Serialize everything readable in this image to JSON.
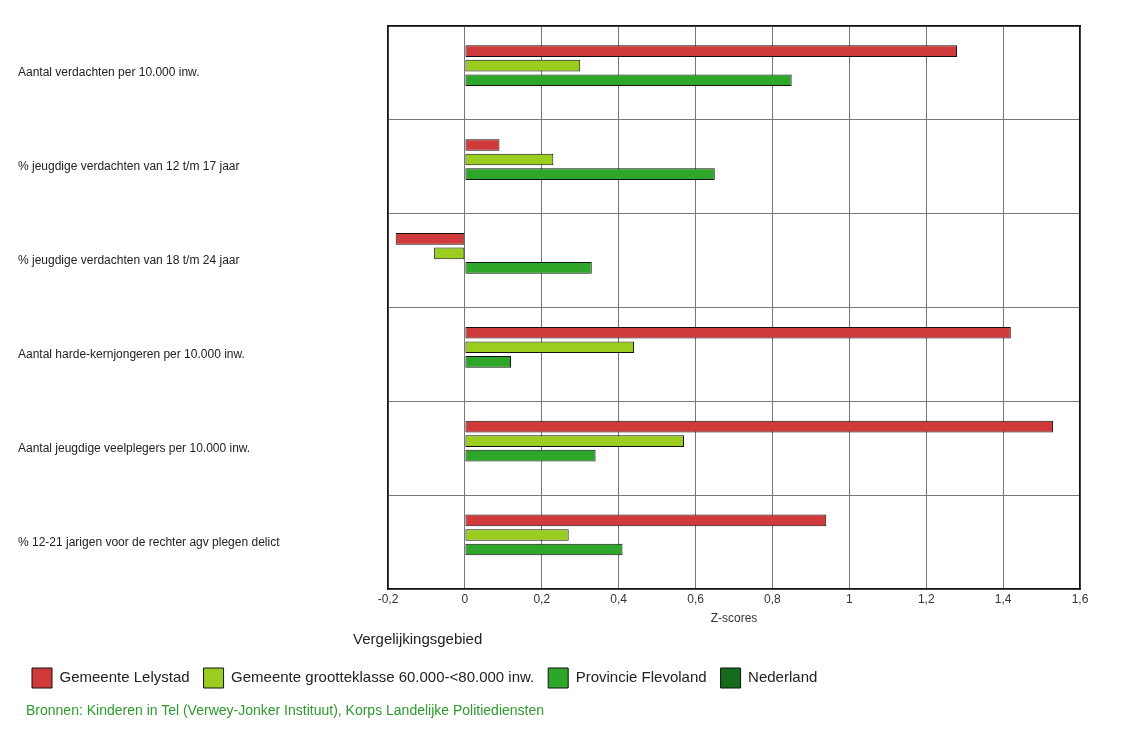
{
  "chart_data": {
    "type": "bar",
    "orientation": "horizontal",
    "xlabel": "Z-scores",
    "legend_title": "Vergelijkingsgebied",
    "legend": "bottom",
    "grid": true,
    "categories": [
      "Aantal verdachten per 10.000 inw.",
      "% jeugdige verdachten van 12 t/m 17 jaar",
      "% jeugdige verdachten van 18 t/m 24 jaar",
      "Aantal harde-kernjongeren per 10.000 inw.",
      "Aantal jeugdige veelplegers per 10.000 inw.",
      "% 12-21 jarigen voor de rechter agv plegen delict"
    ],
    "series": [
      {
        "name": "Gemeente Lelystad",
        "color": "#d03a3a",
        "values": [
          1.28,
          0.09,
          -0.18,
          1.42,
          1.53,
          0.94
        ]
      },
      {
        "name": "Gemeente grootteklasse 60.000-<80.000 inw.",
        "color": "#9acd1e",
        "values": [
          0.3,
          0.23,
          -0.08,
          0.44,
          0.57,
          0.27
        ]
      },
      {
        "name": "Provincie Flevoland",
        "color": "#2ea62a",
        "values": [
          0.85,
          0.65,
          0.33,
          0.12,
          0.34,
          0.41
        ]
      },
      {
        "name": "Nederland",
        "color": "#146b1c",
        "values": [
          0,
          0,
          0,
          0,
          0,
          0
        ]
      }
    ],
    "xlim": [
      -0.2,
      1.6
    ],
    "xticks": [
      {
        "value": -0.2,
        "label": "-0,2"
      },
      0,
      {
        "value": 0.2,
        "label": "0,2"
      },
      {
        "value": 0.4,
        "label": "0,4"
      },
      {
        "value": 0.6,
        "label": "0,6"
      },
      {
        "value": 0.8,
        "label": "0,8"
      },
      1,
      {
        "value": 1.2,
        "label": "1,2"
      },
      {
        "value": 1.4,
        "label": "1,4"
      },
      {
        "value": 1.6,
        "label": "1,6"
      }
    ],
    "annotations": [
      "Bronnen: Kinderen in Tel (Verwey-Jonker Instituut), Korps Landelijke Politiediensten"
    ]
  }
}
